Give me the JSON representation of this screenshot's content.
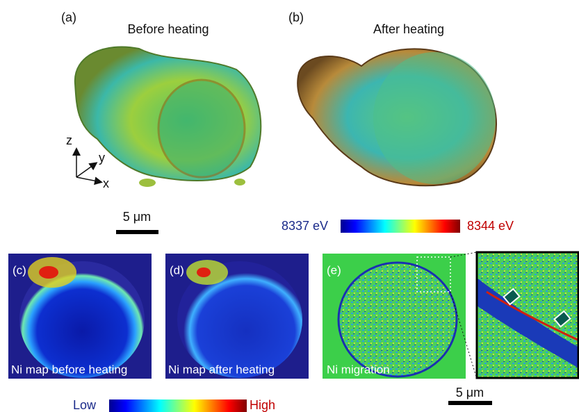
{
  "panels_3d": [
    {
      "label": "(a)",
      "title": "Before heating"
    },
    {
      "label": "(b)",
      "title": "After heating"
    }
  ],
  "axes": {
    "z": "z",
    "y": "y",
    "x": "x"
  },
  "scale_bar_top": "5 μm",
  "energy_colorbar": {
    "min_label": "8337 eV",
    "max_label": "8344 eV"
  },
  "maps": [
    {
      "label": "(c)",
      "caption": "Ni map before heating"
    },
    {
      "label": "(d)",
      "caption": "Ni map after heating"
    },
    {
      "label": "(e)",
      "caption": "Ni migration"
    }
  ],
  "scale_bar_bottom": "5 μm",
  "intensity_colorbar": {
    "low": "Low",
    "high": "High"
  }
}
